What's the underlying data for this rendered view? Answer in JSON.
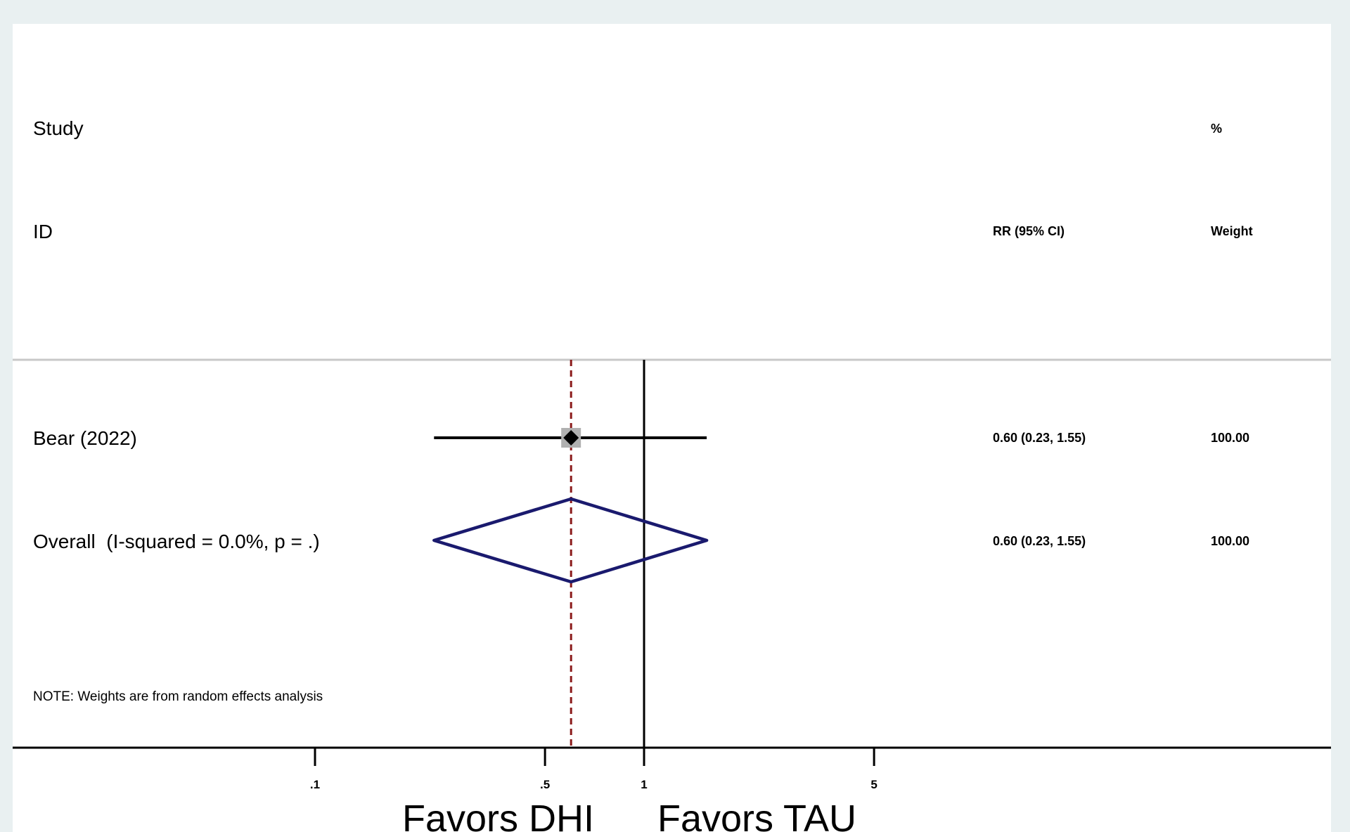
{
  "chart_data": {
    "type": "forest",
    "scale": "log",
    "header": {
      "study_line1": "Study",
      "study_line2": "ID",
      "effect_header": "RR (95% CI)",
      "weight_line1": "%",
      "weight_line2": "Weight"
    },
    "studies": [
      {
        "label": "Bear (2022)",
        "rr": 0.6,
        "ci_low": 0.23,
        "ci_high": 1.55,
        "effect_text": "0.60 (0.23, 1.55)",
        "weight_text": "100.00"
      }
    ],
    "overall": {
      "label": "Overall  (I-squared = 0.0%, p = .)",
      "rr": 0.6,
      "ci_low": 0.23,
      "ci_high": 1.55,
      "effect_text": "0.60 (0.23, 1.55)",
      "weight_text": "100.00"
    },
    "note": "NOTE: Weights are from random effects analysis",
    "x_ticks": [
      {
        "value": 0.1,
        "label": ".1"
      },
      {
        "value": 0.5,
        "label": ".5"
      },
      {
        "value": 1,
        "label": "1"
      },
      {
        "value": 5,
        "label": "5"
      }
    ],
    "null_line": 1,
    "favors_left": "Favors DHI",
    "favors_right": "Favors TAU",
    "colors": {
      "background": "#e9f0f1",
      "panel": "#ffffff",
      "diamond": "#1a1a6e",
      "pooled_line": "#8b1a1a",
      "study_marker": "#000000",
      "weight_box": "#b0b0b0"
    }
  }
}
